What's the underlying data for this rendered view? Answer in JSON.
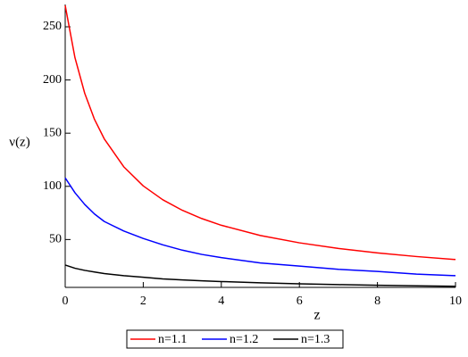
{
  "chart_data": {
    "type": "line",
    "xlabel": "z",
    "ylabel": "ν(z)",
    "x": [
      0,
      0.25,
      0.5,
      0.75,
      1,
      1.5,
      2,
      2.5,
      3,
      3.5,
      4,
      5,
      6,
      7,
      8,
      9,
      10
    ],
    "series": [
      {
        "name": "n=1.1",
        "color": "#ff0000",
        "values": [
          270,
          221,
          187.5,
          163,
          144.7,
          118.4,
          100.4,
          87.4,
          77.5,
          69.7,
          63.4,
          53.8,
          46.9,
          41.6,
          37.4,
          34,
          31.2
        ]
      },
      {
        "name": "n=1.2",
        "color": "#0000ff",
        "values": [
          108,
          94,
          83,
          74,
          67,
          58,
          51,
          45,
          40,
          36,
          33,
          28,
          25,
          22,
          20,
          17.5,
          16
        ]
      },
      {
        "name": "n=1.3",
        "color": "#000000",
        "values": [
          26,
          23,
          21,
          19.5,
          18,
          16,
          14.5,
          13,
          12,
          11.2,
          10.5,
          9.3,
          8.4,
          7.6,
          7,
          6.5,
          6
        ]
      }
    ],
    "xlim": [
      0,
      10
    ],
    "xticks": [
      0,
      2,
      4,
      6,
      8,
      10
    ],
    "ylim": [
      5,
      271
    ],
    "yticks": [
      50,
      100,
      150,
      200,
      250
    ],
    "legend": "bottom"
  }
}
